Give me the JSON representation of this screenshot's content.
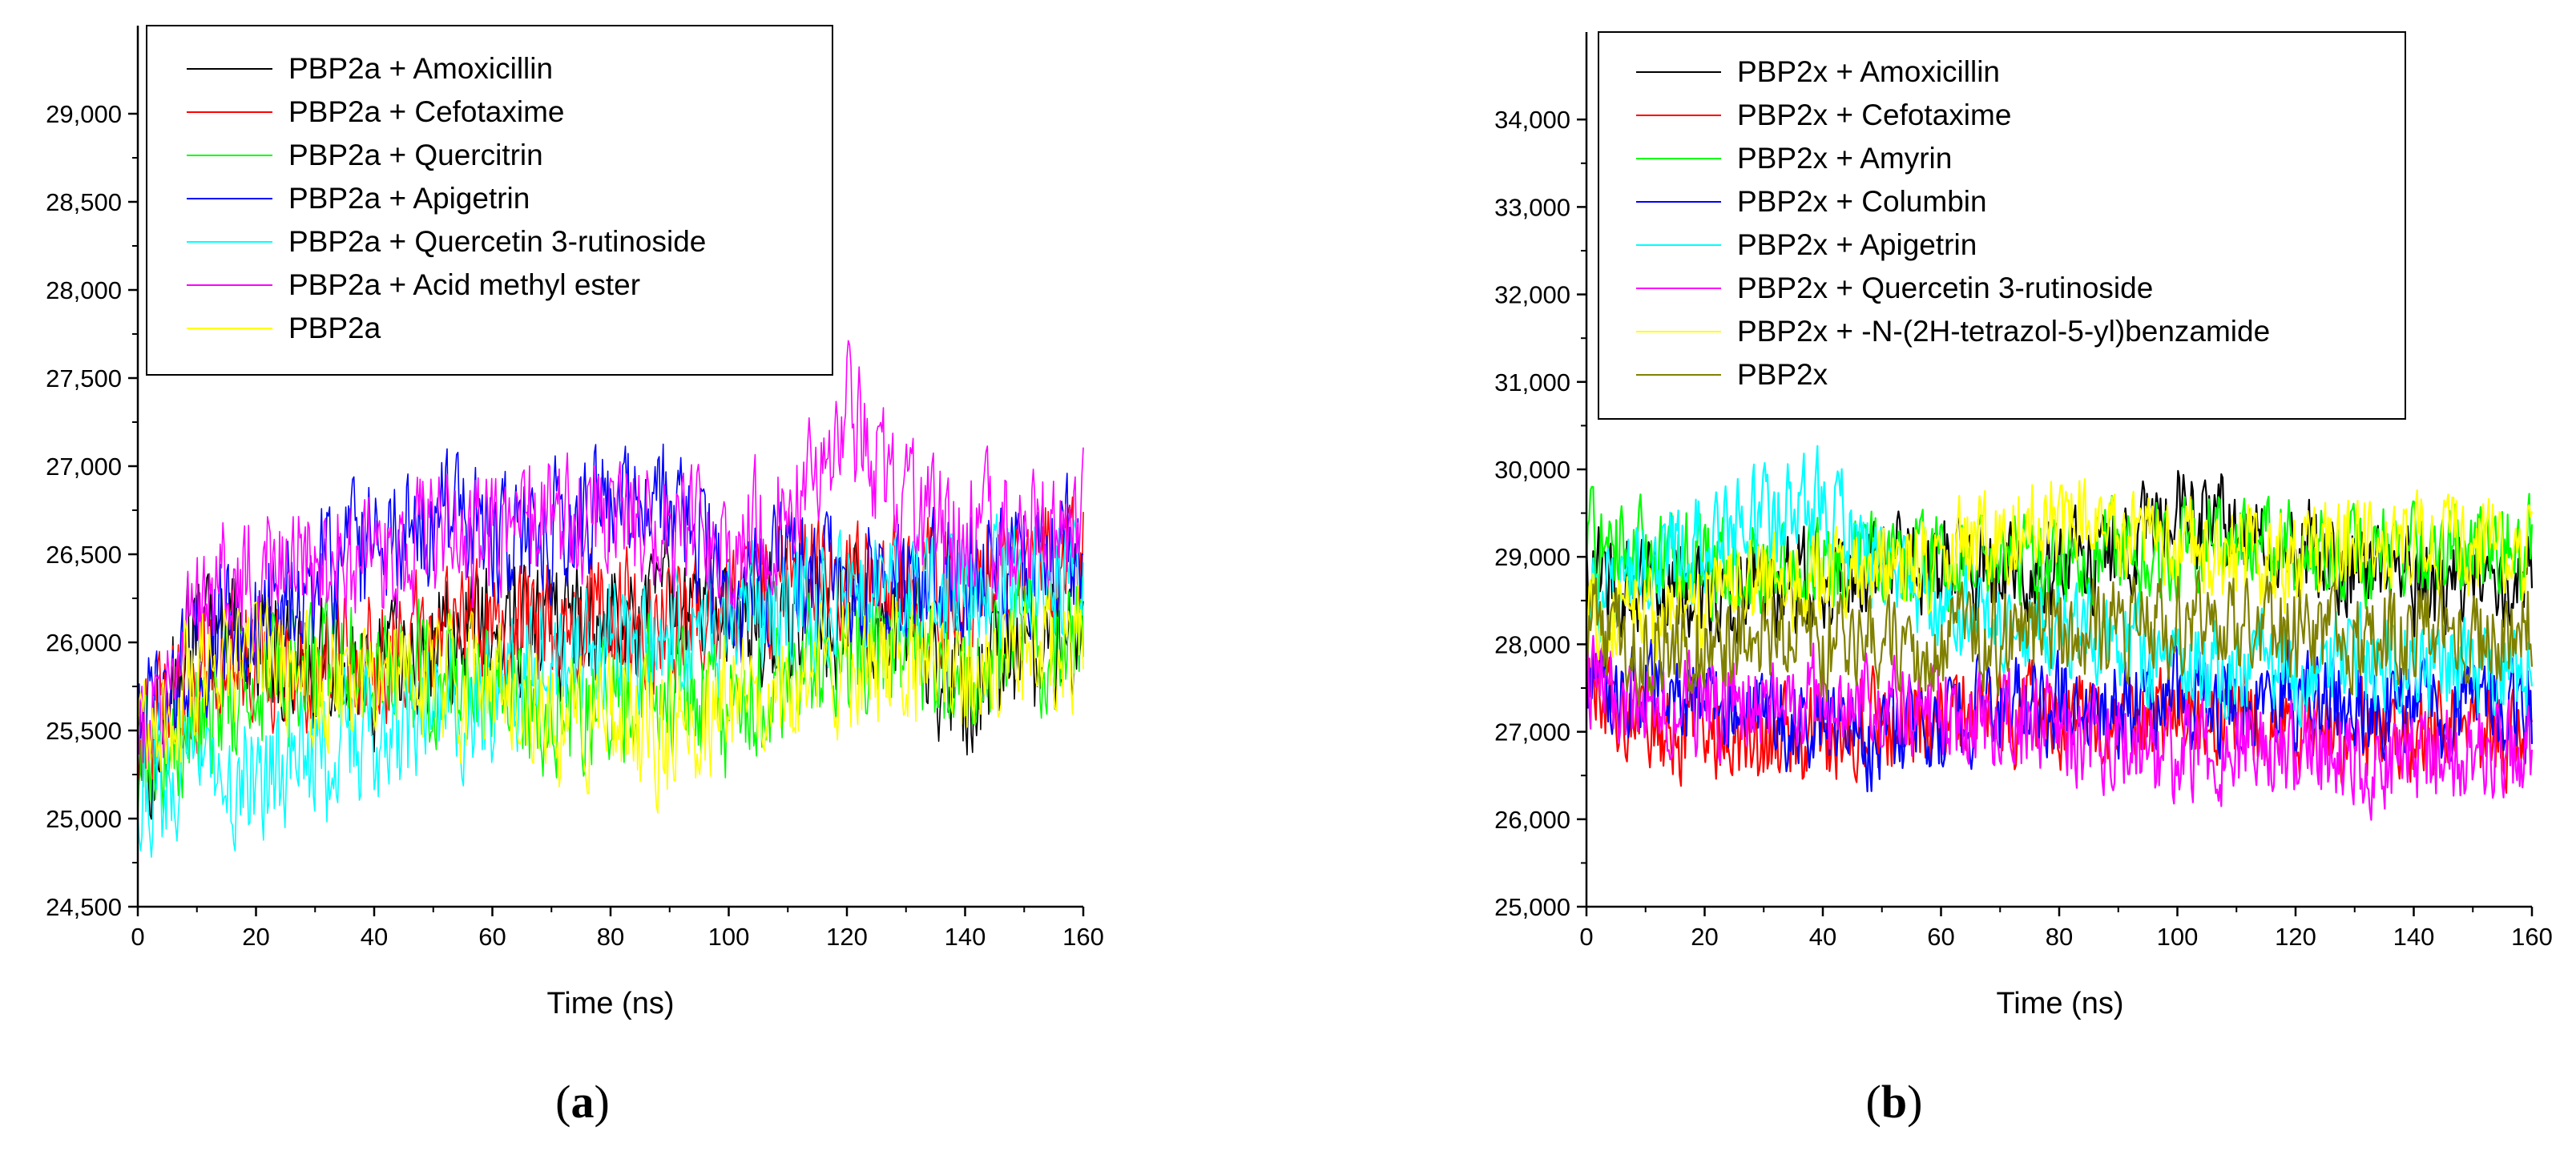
{
  "chart_data": [
    {
      "type": "line",
      "panel_label": "a",
      "xlabel": "Time (ns)",
      "ylabel": "",
      "xlim": [
        0,
        160
      ],
      "ylim": [
        24500,
        29500
      ],
      "xticks": [
        0,
        20,
        40,
        60,
        80,
        100,
        120,
        140,
        160
      ],
      "yticks": [
        24500,
        25000,
        25500,
        26000,
        26500,
        27000,
        27500,
        28000,
        28500,
        29000
      ],
      "xtick_labels": [
        "0",
        "20",
        "40",
        "60",
        "80",
        "100",
        "120",
        "140",
        "160"
      ],
      "ytick_labels": [
        "24,500",
        "25,000",
        "25,500",
        "26,000",
        "26,500",
        "27,000",
        "27,500",
        "28,000",
        "28,500",
        "29,000"
      ],
      "legend_position": "top-left",
      "series": [
        {
          "name": "PBP2a + Amoxicillin",
          "color": "#000000",
          "x": [
            0,
            10,
            20,
            30,
            40,
            50,
            60,
            70,
            80,
            90,
            100,
            110,
            120,
            130,
            140,
            150,
            160
          ],
          "values": [
            25200,
            26100,
            26000,
            25900,
            25800,
            26000,
            26150,
            26050,
            26150,
            26250,
            26050,
            26200,
            26150,
            26100,
            25700,
            25900,
            26100
          ]
        },
        {
          "name": "PBP2a + Cefotaxime",
          "color": "#ff0000",
          "x": [
            0,
            10,
            20,
            30,
            40,
            50,
            60,
            70,
            80,
            90,
            100,
            110,
            120,
            130,
            140,
            150,
            160
          ],
          "values": [
            25400,
            25800,
            25950,
            25900,
            25950,
            26000,
            26050,
            26100,
            26150,
            26100,
            26250,
            26350,
            26400,
            26300,
            26350,
            26400,
            26500
          ]
        },
        {
          "name": "PBP2a + Quercitrin",
          "color": "#00ff00",
          "x": [
            0,
            10,
            20,
            30,
            40,
            50,
            60,
            70,
            80,
            90,
            100,
            110,
            120,
            130,
            140,
            150,
            160
          ],
          "values": [
            25300,
            25600,
            25800,
            25850,
            25900,
            25800,
            25700,
            25650,
            25700,
            25800,
            25600,
            25800,
            25950,
            25950,
            25850,
            26000,
            26000
          ]
        },
        {
          "name": "PBP2a + Apigetrin",
          "color": "#0000ff",
          "x": [
            0,
            10,
            20,
            30,
            40,
            50,
            60,
            70,
            80,
            90,
            100,
            110,
            120,
            130,
            140,
            150,
            160
          ],
          "values": [
            25500,
            25950,
            26200,
            26350,
            26550,
            26700,
            26650,
            26650,
            26750,
            26800,
            26300,
            26450,
            26350,
            26300,
            26400,
            26450,
            26550
          ]
        },
        {
          "name": "PBP2a + Quercetin 3-rutinoside",
          "color": "#00ffff",
          "x": [
            0,
            10,
            20,
            30,
            40,
            50,
            60,
            70,
            80,
            90,
            100,
            110,
            120,
            130,
            140,
            150,
            160
          ],
          "values": [
            25200,
            25300,
            25250,
            25350,
            25450,
            25550,
            25700,
            25850,
            26000,
            26050,
            26100,
            26200,
            26250,
            26250,
            26300,
            26350,
            26400
          ]
        },
        {
          "name": "PBP2a + Acid methyl ester",
          "color": "#ff00ff",
          "x": [
            0,
            10,
            20,
            30,
            40,
            50,
            60,
            70,
            80,
            90,
            100,
            110,
            120,
            130,
            140,
            150,
            160
          ],
          "values": [
            25300,
            26250,
            26400,
            26450,
            26500,
            26550,
            26600,
            26700,
            26650,
            26700,
            26500,
            26800,
            27300,
            26700,
            26600,
            26650,
            26700
          ]
        },
        {
          "name": "PBP2a",
          "color": "#ffff00",
          "x": [
            0,
            10,
            20,
            30,
            40,
            50,
            60,
            70,
            80,
            90,
            100,
            110,
            120,
            130,
            140,
            150,
            160
          ],
          "values": [
            25500,
            25800,
            25900,
            25800,
            25800,
            25750,
            25700,
            25550,
            25600,
            25450,
            25700,
            25800,
            25850,
            25900,
            25800,
            25900,
            26000
          ]
        }
      ]
    },
    {
      "type": "line",
      "panel_label": "b",
      "xlabel": "Time (ns)",
      "ylabel": "",
      "xlim": [
        0,
        160
      ],
      "ylim": [
        25000,
        35000
      ],
      "xticks": [
        0,
        20,
        40,
        60,
        80,
        100,
        120,
        140,
        160
      ],
      "yticks": [
        25000,
        26000,
        27000,
        28000,
        29000,
        30000,
        31000,
        32000,
        33000,
        34000
      ],
      "xtick_labels": [
        "0",
        "20",
        "40",
        "60",
        "80",
        "100",
        "120",
        "140",
        "160"
      ],
      "ytick_labels": [
        "25,000",
        "26,000",
        "27,000",
        "28,000",
        "29,000",
        "30,000",
        "31,000",
        "32,000",
        "33,000",
        "34,000"
      ],
      "legend_position": "top-left",
      "series": [
        {
          "name": "PBP2x + Amoxicillin",
          "color": "#000000",
          "x": [
            0,
            10,
            20,
            30,
            40,
            50,
            60,
            70,
            80,
            90,
            100,
            110,
            120,
            130,
            140,
            150,
            160
          ],
          "values": [
            28800,
            28700,
            28600,
            28700,
            28800,
            28900,
            28900,
            28800,
            28900,
            29000,
            29600,
            29300,
            29100,
            28900,
            28700,
            28700,
            28700
          ]
        },
        {
          "name": "PBP2x + Cefotaxime",
          "color": "#ff0000",
          "x": [
            0,
            10,
            20,
            30,
            40,
            50,
            60,
            70,
            80,
            90,
            100,
            110,
            120,
            130,
            140,
            150,
            160
          ],
          "values": [
            27500,
            27100,
            27000,
            26900,
            27000,
            27100,
            27200,
            27200,
            27200,
            27200,
            27200,
            27100,
            27100,
            27000,
            27000,
            27000,
            27000
          ]
        },
        {
          "name": "PBP2x + Amyrin",
          "color": "#00ff00",
          "x": [
            0,
            10,
            20,
            30,
            40,
            50,
            60,
            70,
            80,
            90,
            100,
            110,
            120,
            130,
            140,
            150,
            160
          ],
          "values": [
            29200,
            29000,
            28900,
            28900,
            28900,
            28900,
            28900,
            29000,
            29000,
            29000,
            29100,
            29100,
            29100,
            29000,
            29000,
            29100,
            29100
          ]
        },
        {
          "name": "PBP2x + Columbin",
          "color": "#0000ff",
          "x": [
            0,
            10,
            20,
            30,
            40,
            50,
            60,
            70,
            80,
            90,
            100,
            110,
            120,
            130,
            140,
            150,
            160
          ],
          "values": [
            27600,
            27400,
            27300,
            27200,
            27100,
            26900,
            27100,
            27300,
            27300,
            27300,
            27400,
            27400,
            27400,
            27300,
            27200,
            27300,
            27200
          ]
        },
        {
          "name": "PBP2x + Apigetrin",
          "color": "#00ffff",
          "x": [
            0,
            10,
            20,
            30,
            40,
            50,
            60,
            70,
            80,
            90,
            100,
            110,
            120,
            130,
            140,
            150,
            160
          ],
          "values": [
            28500,
            28900,
            29200,
            29400,
            29700,
            28800,
            28400,
            28200,
            28200,
            28000,
            27800,
            27800,
            27800,
            27800,
            27700,
            27700,
            27700
          ]
        },
        {
          "name": "PBP2x + Quercetin 3-rutinoside",
          "color": "#ff00ff",
          "x": [
            0,
            10,
            20,
            30,
            40,
            50,
            60,
            70,
            80,
            90,
            100,
            110,
            120,
            130,
            140,
            150,
            160
          ],
          "values": [
            27600,
            27300,
            27300,
            27400,
            27400,
            27300,
            27200,
            27100,
            27000,
            26900,
            26700,
            26800,
            26800,
            26700,
            26700,
            26800,
            26800
          ]
        },
        {
          "name": "PBP2x + -N-(2H-tetrazol-5-yl)benzamide",
          "color": "#ffff00",
          "x": [
            0,
            10,
            20,
            30,
            40,
            50,
            60,
            70,
            80,
            90,
            100,
            110,
            120,
            130,
            140,
            150,
            160
          ],
          "values": [
            28400,
            28300,
            28500,
            28700,
            28700,
            28800,
            29000,
            29200,
            29400,
            29300,
            29100,
            29000,
            28900,
            29100,
            29200,
            29100,
            29000
          ]
        },
        {
          "name": "PBP2x",
          "color": "#808000",
          "x": [
            0,
            10,
            20,
            30,
            40,
            50,
            60,
            70,
            80,
            90,
            100,
            110,
            120,
            130,
            140,
            150,
            160
          ],
          "values": [
            28200,
            28000,
            28000,
            28100,
            28000,
            28000,
            28000,
            28100,
            28100,
            28200,
            28200,
            28200,
            28100,
            28100,
            28100,
            28100,
            28200
          ]
        }
      ]
    }
  ]
}
